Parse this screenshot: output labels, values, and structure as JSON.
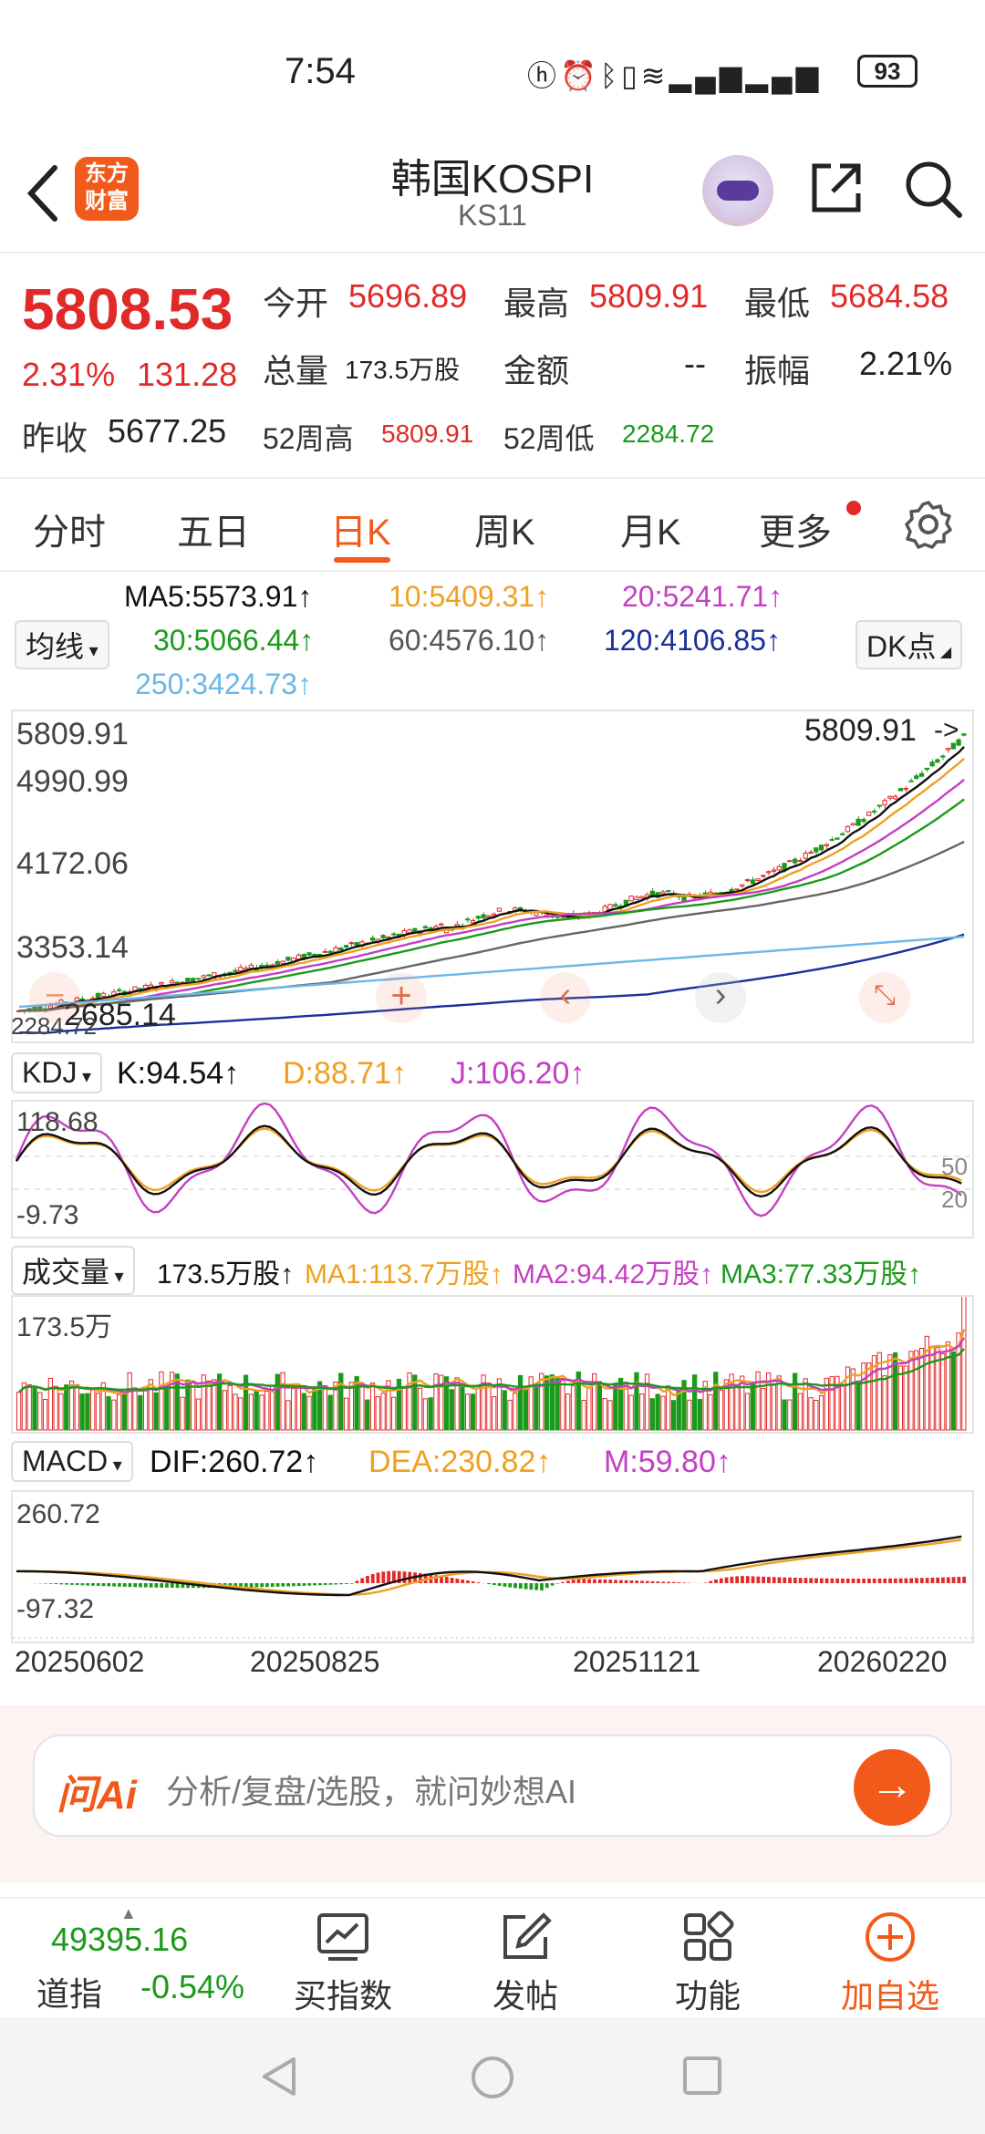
{
  "status_bar": {
    "time": "7:54",
    "icons": [
      "hd-icon",
      "alarm-icon",
      "bluetooth-icon",
      "vibrate-icon",
      "wifi-icon",
      "5g-signal-icon",
      "4g-signal-icon"
    ],
    "battery": "93"
  },
  "header": {
    "logo_top": "东方",
    "logo_bottom": "财富",
    "title": "韩国KOSPI",
    "subtitle": "KS11"
  },
  "quote": {
    "price": "5808.53",
    "change_pct": "2.31%",
    "change": "131.28",
    "prev_close_label": "昨收",
    "prev_close": "5677.25",
    "open_label": "今开",
    "open": "5696.89",
    "high_label": "最高",
    "high": "5809.91",
    "low_label": "最低",
    "low": "5684.58",
    "volume_label": "总量",
    "volume": "173.5万股",
    "amount_label": "金额",
    "amount": "--",
    "amplitude_label": "振幅",
    "amplitude": "2.21%",
    "w52_high_label": "52周高",
    "w52_high": "5809.91",
    "w52_low_label": "52周低",
    "w52_low": "2284.72"
  },
  "tabs": {
    "items": [
      "分时",
      "五日",
      "日K",
      "周K",
      "月K",
      "更多"
    ],
    "active": "日K"
  },
  "ma_row": {
    "selector": "均线",
    "ma5": "MA5:5573.91↑",
    "ma10": "10:5409.31↑",
    "ma20": "20:5241.71↑",
    "ma30": "30:5066.44↑",
    "ma60": "60:4576.10↑",
    "ma120": "120:4106.85↑",
    "ma250": "250:3424.73↑",
    "dk_button": "DK点"
  },
  "kline": {
    "y_labels": [
      "5809.91",
      "4990.99",
      "4172.06",
      "3353.14"
    ],
    "bottom_label": "2685.14",
    "low_marker": "2284.72",
    "high_marker": "5809.91"
  },
  "kdj": {
    "selector": "KDJ",
    "k": "K:94.54↑",
    "d": "D:88.71↑",
    "j": "J:106.20↑",
    "y_top": "118.68",
    "y_bottom": "-9.73",
    "ref_50": "50",
    "ref_20": "20"
  },
  "volume": {
    "selector": "成交量",
    "vol": "173.5万股↑",
    "ma1": "MA1:113.7万股↑",
    "ma2": "MA2:94.42万股↑",
    "ma3": "MA3:77.33万股↑",
    "y_top": "173.5万"
  },
  "macd": {
    "selector": "MACD",
    "dif": "DIF:260.72↑",
    "dea": "DEA:230.82↑",
    "m": "M:59.80↑",
    "y_top": "260.72",
    "y_bottom": "-97.32"
  },
  "dates": [
    "20250602",
    "20250825",
    "20251121",
    "20260220"
  ],
  "ai_bar": {
    "logo": "问Ai",
    "placeholder": "分析/复盘/选股，就问妙想AI"
  },
  "bottom_nav": {
    "index_value": "49395.16",
    "index_name": "道指",
    "index_change": "-0.54%",
    "buy_index": "买指数",
    "post": "发帖",
    "functions": "功能",
    "add_watch": "加自选"
  },
  "colors": {
    "up": "#e02a2a",
    "down": "#1a9a1a",
    "accent": "#f25a1b",
    "ma5": "#111111",
    "ma10": "#f0a020",
    "ma20": "#c43fc4",
    "ma30": "#1a9a1a",
    "ma60": "#666666",
    "ma120": "#1a2f9c",
    "ma250": "#6ab7e8"
  }
}
